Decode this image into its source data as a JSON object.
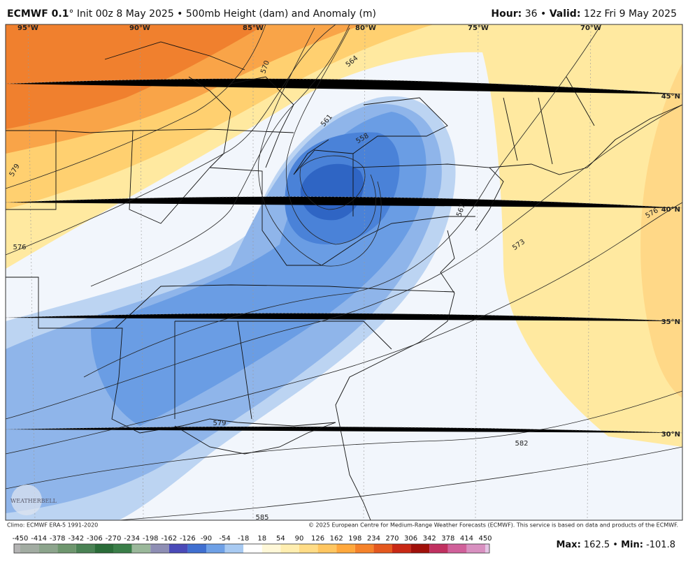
{
  "header": {
    "model": "ECMWF 0.1",
    "degree": "°",
    "description": "Init 00z 8 May 2025 • 500mb Height (dam) and Anomaly (m)",
    "hour_label": "Hour:",
    "hour": 36,
    "separator": "•",
    "valid_label": "Valid:",
    "valid": "12z Fri 9 May 2025"
  },
  "map": {
    "longitude_labels": [
      "95°W",
      "90°W",
      "85°W",
      "80°W",
      "75°W",
      "70°W"
    ],
    "latitude_labels": [
      "45°N",
      "40°N",
      "35°N",
      "30°N"
    ],
    "contour_labels": [
      "564",
      "561",
      "558",
      "570",
      "579",
      "576",
      "567",
      "573",
      "576",
      "582",
      "579",
      "585"
    ],
    "logo": "WEATHERBELL"
  },
  "footer": {
    "climo": "Climo: ECMWF ERA-5 1991-2020",
    "copyright": "© 2025 European Centre for Medium-Range Weather Forecasts (ECMWF). This service is based on data and products of the ECMWF.",
    "colorbar": {
      "ticks": [
        -450,
        -414,
        -378,
        -342,
        -306,
        -270,
        -234,
        -198,
        -162,
        -126,
        -90,
        -54,
        -18,
        18,
        54,
        90,
        126,
        162,
        198,
        234,
        270,
        306,
        342,
        378,
        414,
        450
      ],
      "colors": [
        "#b4b4b4",
        "#a2aca2",
        "#8ca48c",
        "#6e966e",
        "#4a8254",
        "#2a6c38",
        "#3a7e48",
        "#9ab89a",
        "#8e8eb4",
        "#4a4ab8",
        "#3f6fd0",
        "#6ea0e6",
        "#a8caf2",
        "#ffffff",
        "#fff8d8",
        "#ffeeb0",
        "#ffdc86",
        "#ffc660",
        "#ffa83c",
        "#f5822a",
        "#e4581e",
        "#c82814",
        "#a0100a",
        "#c03060",
        "#d0609a",
        "#d890c0",
        "#e4c4e4"
      ]
    },
    "max_label": "Max:",
    "max": 162.5,
    "separator": "•",
    "min_label": "Min:",
    "min": -101.8
  }
}
